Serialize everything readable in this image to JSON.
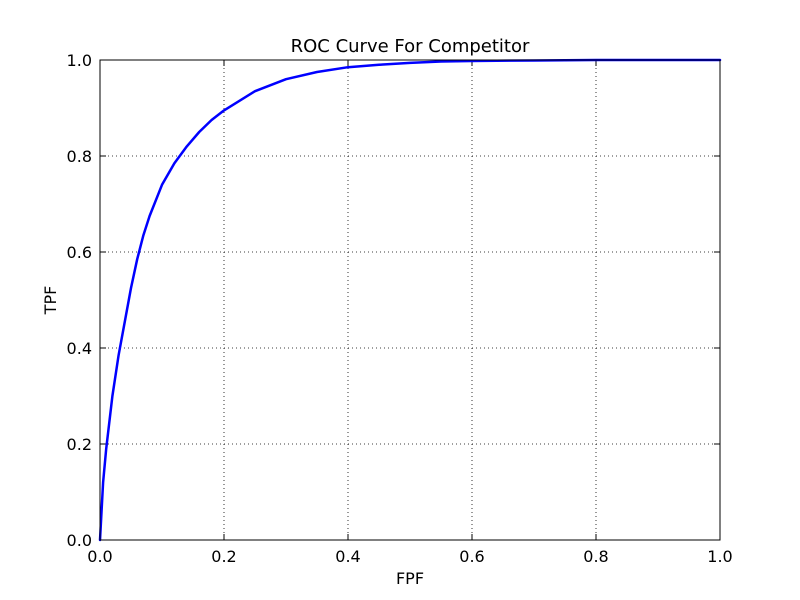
{
  "chart_data": {
    "type": "line",
    "title": "ROC Curve For Competitor",
    "xlabel": "FPF",
    "ylabel": "TPF",
    "xlim": [
      0.0,
      1.0
    ],
    "ylim": [
      0.0,
      1.0
    ],
    "xticks": [
      "0.0",
      "0.2",
      "0.4",
      "0.6",
      "0.8",
      "1.0"
    ],
    "yticks": [
      "0.0",
      "0.2",
      "0.4",
      "0.6",
      "0.8",
      "1.0"
    ],
    "grid": true,
    "grid_style": "dotted",
    "line_color": "#0000ff",
    "series": [
      {
        "x": [
          0.0,
          0.005,
          0.01,
          0.02,
          0.03,
          0.04,
          0.05,
          0.06,
          0.07,
          0.08,
          0.1,
          0.12,
          0.14,
          0.16,
          0.18,
          0.2,
          0.25,
          0.3,
          0.35,
          0.4,
          0.45,
          0.5,
          0.55,
          0.6,
          0.7,
          0.8,
          0.9,
          1.0
        ],
        "y": [
          0.0,
          0.12,
          0.19,
          0.3,
          0.385,
          0.455,
          0.525,
          0.585,
          0.635,
          0.675,
          0.74,
          0.785,
          0.82,
          0.85,
          0.875,
          0.895,
          0.935,
          0.96,
          0.975,
          0.985,
          0.99,
          0.994,
          0.997,
          0.998,
          0.999,
          1.0,
          1.0,
          1.0
        ]
      }
    ]
  }
}
